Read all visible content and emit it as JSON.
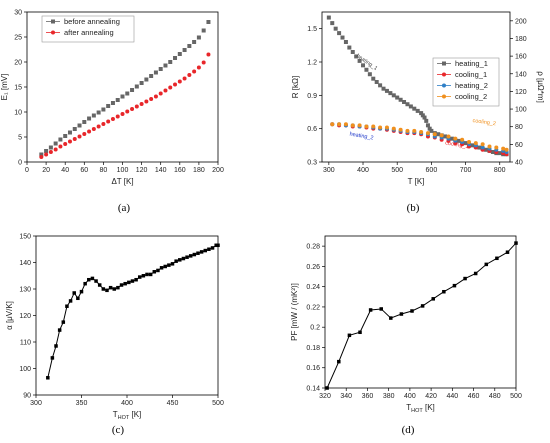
{
  "panel_labels": [
    "(a)",
    "(b)",
    "(c)",
    "(d)"
  ],
  "chart_data": [
    {
      "type": "scatter",
      "panel": "(a)",
      "xlabel": "ΔT [K]",
      "ylabel": "E₁ [mV]",
      "xlim": [
        0,
        200
      ],
      "ylim": [
        0,
        30
      ],
      "xticks": [
        0,
        20,
        40,
        60,
        80,
        100,
        120,
        140,
        160,
        180,
        200
      ],
      "yticks": [
        0,
        5,
        10,
        15,
        20,
        25,
        30
      ],
      "legend_position": "top-left",
      "series": [
        {
          "name": "before annealing",
          "color": "#666666",
          "marker": "square",
          "x": [
            15,
            20,
            25,
            30,
            35,
            40,
            45,
            50,
            55,
            60,
            65,
            70,
            75,
            80,
            85,
            90,
            95,
            100,
            105,
            110,
            115,
            120,
            125,
            130,
            135,
            140,
            145,
            150,
            155,
            160,
            165,
            170,
            175,
            180,
            185,
            190
          ],
          "y": [
            1.5,
            2.2,
            2.9,
            3.7,
            4.5,
            5.2,
            5.9,
            6.6,
            7.3,
            8.0,
            8.7,
            9.3,
            9.9,
            10.5,
            11.2,
            11.8,
            12.4,
            13.1,
            13.7,
            14.4,
            15.1,
            15.8,
            16.5,
            17.2,
            17.9,
            18.6,
            19.3,
            20.0,
            20.8,
            21.6,
            22.4,
            23.2,
            24.0,
            24.9,
            26.3,
            28.0
          ]
        },
        {
          "name": "after annealing",
          "color": "#e8262a",
          "marker": "circle",
          "x": [
            15,
            20,
            25,
            30,
            35,
            40,
            45,
            50,
            55,
            60,
            65,
            70,
            75,
            80,
            85,
            90,
            95,
            100,
            105,
            110,
            115,
            120,
            125,
            130,
            135,
            140,
            145,
            150,
            155,
            160,
            165,
            170,
            175,
            180,
            185,
            190
          ],
          "y": [
            1.0,
            1.5,
            2.0,
            2.5,
            3.1,
            3.6,
            4.1,
            4.6,
            5.1,
            5.6,
            6.1,
            6.6,
            7.1,
            7.6,
            8.1,
            8.6,
            9.1,
            9.6,
            10.1,
            10.6,
            11.1,
            11.6,
            12.1,
            12.6,
            13.1,
            13.7,
            14.3,
            14.9,
            15.5,
            16.1,
            16.7,
            17.4,
            18.1,
            18.9,
            19.9,
            21.5
          ]
        }
      ]
    },
    {
      "type": "scatter",
      "panel": "(b)",
      "xlabel": "T [K]",
      "ylabel": "R [kΩ]",
      "ylabel_right": "ρ [μΩ*m]",
      "xlim": [
        280,
        830
      ],
      "ylim": [
        0.3,
        1.65
      ],
      "ylim_right": [
        40,
        210
      ],
      "xticks": [
        300,
        400,
        500,
        600,
        700,
        800
      ],
      "yticks": [
        0.3,
        0.6,
        0.9,
        1.2,
        1.5
      ],
      "yticks_right": [
        40,
        60,
        80,
        100,
        120,
        140,
        160,
        180,
        200
      ],
      "legend_position": "top-right",
      "annotations": [
        {
          "text": "heating_1",
          "x": 380,
          "y": 1.25,
          "color": "#444444"
        },
        {
          "text": "heating_2",
          "x": 360,
          "y": 0.54,
          "color": "#1a34c8"
        },
        {
          "text": "cooling_1",
          "x": 640,
          "y": 0.46,
          "color": "#e8262a"
        },
        {
          "text": "cooling_2",
          "x": 720,
          "y": 0.66,
          "color": "#f0901e"
        }
      ],
      "series": [
        {
          "name": "heating_1",
          "color": "#666666",
          "marker": "square",
          "x": [
            300,
            310,
            320,
            330,
            340,
            350,
            360,
            370,
            380,
            390,
            400,
            410,
            420,
            430,
            440,
            450,
            460,
            470,
            480,
            490,
            500,
            510,
            520,
            530,
            540,
            550,
            560,
            570,
            575,
            580,
            585,
            590,
            595,
            600,
            610,
            620,
            630,
            640,
            650,
            660,
            670,
            680,
            690,
            700,
            710,
            720,
            730,
            740,
            750,
            760,
            770,
            780,
            790,
            800,
            810,
            820
          ],
          "y": [
            1.6,
            1.55,
            1.5,
            1.46,
            1.42,
            1.38,
            1.33,
            1.29,
            1.25,
            1.21,
            1.17,
            1.13,
            1.09,
            1.05,
            1.02,
            0.99,
            0.96,
            0.94,
            0.92,
            0.9,
            0.88,
            0.86,
            0.84,
            0.82,
            0.8,
            0.78,
            0.76,
            0.74,
            0.72,
            0.7,
            0.67,
            0.63,
            0.6,
            0.58,
            0.56,
            0.55,
            0.54,
            0.53,
            0.52,
            0.51,
            0.5,
            0.49,
            0.48,
            0.47,
            0.46,
            0.45,
            0.44,
            0.43,
            0.42,
            0.41,
            0.4,
            0.39,
            0.38,
            0.38,
            0.37,
            0.37
          ]
        },
        {
          "name": "cooling_1",
          "color": "#e8262a",
          "marker": "circle",
          "x": [
            310,
            330,
            350,
            370,
            390,
            410,
            430,
            450,
            470,
            490,
            510,
            530,
            550,
            570,
            590,
            610,
            630,
            650,
            670,
            690,
            710,
            730,
            750,
            770,
            790,
            810,
            820
          ],
          "y": [
            0.64,
            0.63,
            0.63,
            0.62,
            0.62,
            0.61,
            0.6,
            0.6,
            0.59,
            0.58,
            0.57,
            0.56,
            0.56,
            0.55,
            0.53,
            0.52,
            0.5,
            0.49,
            0.47,
            0.46,
            0.44,
            0.43,
            0.41,
            0.4,
            0.39,
            0.38,
            0.37
          ]
        },
        {
          "name": "heating_2",
          "color": "#2f7fc6",
          "marker": "circle",
          "x": [
            310,
            330,
            350,
            370,
            390,
            410,
            430,
            450,
            470,
            490,
            510,
            530,
            550,
            570,
            590,
            610,
            630,
            650,
            670,
            690,
            710,
            730,
            750,
            770,
            790,
            810,
            820
          ],
          "y": [
            0.64,
            0.64,
            0.63,
            0.63,
            0.62,
            0.62,
            0.61,
            0.6,
            0.6,
            0.59,
            0.58,
            0.57,
            0.57,
            0.56,
            0.55,
            0.53,
            0.52,
            0.51,
            0.49,
            0.48,
            0.46,
            0.45,
            0.43,
            0.42,
            0.41,
            0.4,
            0.39
          ]
        },
        {
          "name": "cooling_2",
          "color": "#f0901e",
          "marker": "circle",
          "x": [
            310,
            330,
            350,
            370,
            390,
            410,
            430,
            450,
            470,
            490,
            510,
            530,
            550,
            570,
            590,
            610,
            630,
            650,
            670,
            690,
            710,
            730,
            750,
            770,
            790,
            810,
            820
          ],
          "y": [
            0.64,
            0.64,
            0.64,
            0.63,
            0.63,
            0.62,
            0.62,
            0.61,
            0.61,
            0.6,
            0.59,
            0.58,
            0.58,
            0.57,
            0.56,
            0.55,
            0.54,
            0.53,
            0.51,
            0.5,
            0.48,
            0.47,
            0.46,
            0.44,
            0.43,
            0.42,
            0.41
          ]
        }
      ]
    },
    {
      "type": "line",
      "panel": "(c)",
      "xlabel": "T",
      "xlabel_sub": "HOT",
      "xlabel_unit": " [K]",
      "ylabel": "α [μV/K]",
      "xlim": [
        300,
        500
      ],
      "ylim": [
        90,
        150
      ],
      "xticks": [
        300,
        350,
        400,
        450,
        500
      ],
      "yticks": [
        90,
        100,
        110,
        120,
        130,
        140,
        150
      ],
      "series": [
        {
          "color": "#000000",
          "marker": "square",
          "x": [
            313,
            318,
            322,
            326,
            330,
            334,
            338,
            342,
            346,
            350,
            354,
            358,
            362,
            366,
            370,
            374,
            378,
            382,
            386,
            390,
            394,
            398,
            402,
            406,
            410,
            414,
            418,
            422,
            426,
            430,
            434,
            438,
            442,
            446,
            450,
            454,
            458,
            462,
            466,
            470,
            474,
            478,
            482,
            486,
            490,
            494,
            498,
            500
          ],
          "y": [
            96.5,
            104,
            108.5,
            114.5,
            117.5,
            123.5,
            125.5,
            128.5,
            126.5,
            129,
            132,
            133.5,
            134,
            133,
            131.5,
            130,
            129.5,
            130.5,
            130,
            130.5,
            131.5,
            132,
            132.5,
            133,
            133.5,
            134.5,
            135,
            135.5,
            135.5,
            136.5,
            137,
            138,
            138.5,
            139,
            139.5,
            140.5,
            141,
            141.5,
            142,
            142.5,
            143,
            143.5,
            144,
            144.5,
            145,
            145.5,
            146.5,
            146.5
          ]
        }
      ]
    },
    {
      "type": "line",
      "panel": "(d)",
      "xlabel": "T",
      "xlabel_sub": "HOT",
      "xlabel_unit": " [K]",
      "ylabel": "PF [mW / (mK²)]",
      "xlim": [
        320,
        500
      ],
      "ylim": [
        0.14,
        0.29
      ],
      "xticks": [
        320,
        340,
        360,
        380,
        400,
        420,
        440,
        460,
        480,
        500
      ],
      "yticks": [
        0.14,
        0.16,
        0.18,
        0.2,
        0.22,
        0.24,
        0.26,
        0.28
      ],
      "series": [
        {
          "color": "#000000",
          "marker": "square",
          "x": [
            322,
            333,
            343,
            353,
            363,
            373,
            382,
            392,
            402,
            412,
            422,
            432,
            442,
            452,
            462,
            472,
            482,
            492,
            500
          ],
          "y": [
            0.14,
            0.166,
            0.192,
            0.195,
            0.217,
            0.218,
            0.209,
            0.213,
            0.216,
            0.221,
            0.228,
            0.235,
            0.241,
            0.248,
            0.253,
            0.262,
            0.268,
            0.274,
            0.283
          ]
        }
      ]
    }
  ]
}
